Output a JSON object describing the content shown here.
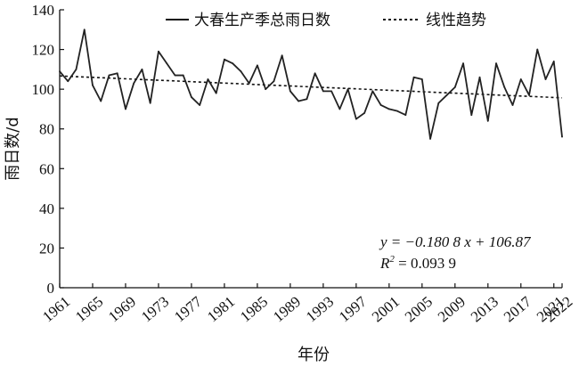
{
  "chart_data": {
    "type": "line",
    "xlabel": "年份",
    "ylabel": "雨日数/d",
    "xlim": [
      1961,
      2022
    ],
    "ylim": [
      0,
      140
    ],
    "y_ticks": [
      "0",
      "20",
      "40",
      "60",
      "80",
      "100",
      "120",
      "140"
    ],
    "x_ticks": [
      "1961",
      "1965",
      "1969",
      "1973",
      "1977",
      "1981",
      "1985",
      "1989",
      "1993",
      "1997",
      "2001",
      "2005",
      "2009",
      "2013",
      "2017",
      "2021",
      "2022"
    ],
    "legend_placement": "top",
    "grid": false,
    "series": [
      {
        "name": "大春生产季总雨日数",
        "style": "solid",
        "x": [
          1961,
          1962,
          1963,
          1964,
          1965,
          1966,
          1967,
          1968,
          1969,
          1970,
          1971,
          1972,
          1973,
          1974,
          1975,
          1976,
          1977,
          1978,
          1979,
          1980,
          1981,
          1982,
          1983,
          1984,
          1985,
          1986,
          1987,
          1988,
          1989,
          1990,
          1991,
          1992,
          1993,
          1994,
          1995,
          1996,
          1997,
          1998,
          1999,
          2000,
          2001,
          2002,
          2003,
          2004,
          2005,
          2006,
          2007,
          2008,
          2009,
          2010,
          2011,
          2012,
          2013,
          2014,
          2015,
          2016,
          2017,
          2018,
          2019,
          2020,
          2021,
          2022
        ],
        "values": [
          109,
          104,
          110,
          130,
          102,
          94,
          107,
          108,
          90,
          103,
          110,
          93,
          119,
          113,
          107,
          107,
          96,
          92,
          105,
          98,
          115,
          113,
          109,
          103,
          112,
          100,
          104,
          117,
          99,
          94,
          95,
          108,
          99,
          99,
          90,
          100,
          85,
          88,
          99,
          92,
          90,
          89,
          87,
          106,
          105,
          75,
          93,
          97,
          101,
          113,
          87,
          106,
          84,
          113,
          101,
          92,
          105,
          97,
          120,
          105,
          114,
          76
        ]
      },
      {
        "name": "线性趋势",
        "style": "dashed",
        "trend": {
          "slope": -0.1808,
          "intercept": 106.87,
          "x_start": 1961,
          "x_end": 2022
        }
      }
    ],
    "annotations": {
      "equation": "y = −0.180 8 x + 106.87",
      "r2_prefix": "R",
      "r2_sup": "2",
      "r2_value": " = 0.093 9"
    }
  }
}
